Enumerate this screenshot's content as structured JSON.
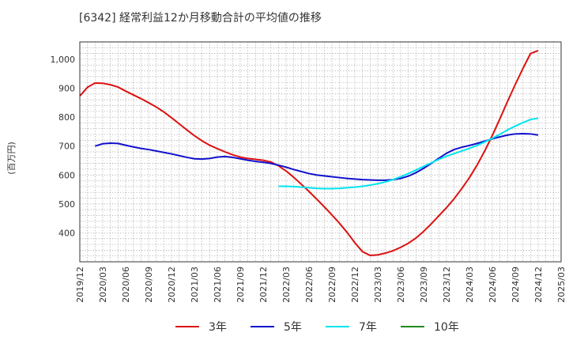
{
  "chart_data": {
    "type": "line",
    "title": "[6342]  経常利益12か月移動合計の平均値の推移",
    "ylabel": "(百万円)",
    "xlabel": "",
    "ylim": [
      300,
      1060
    ],
    "yticks": [
      400,
      500,
      600,
      700,
      800,
      900,
      1000
    ],
    "ytick_labels": [
      "400",
      "500",
      "600",
      "700",
      "800",
      "900",
      "1,000"
    ],
    "xticks": [
      "2019/12",
      "2020/03",
      "2020/06",
      "2020/09",
      "2020/12",
      "2021/03",
      "2021/06",
      "2021/09",
      "2021/12",
      "2022/03",
      "2022/06",
      "2022/09",
      "2022/12",
      "2023/03",
      "2023/06",
      "2023/09",
      "2023/12",
      "2024/03",
      "2024/06",
      "2024/09",
      "2024/12",
      "2025/03"
    ],
    "grid": true,
    "legend_position": "bottom",
    "series": [
      {
        "name": "3年",
        "color": "#dd1111",
        "points": [
          [
            "2019/12",
            873
          ],
          [
            "2020/01",
            903
          ],
          [
            "2020/02",
            918
          ],
          [
            "2020/03",
            917
          ],
          [
            "2020/04",
            912
          ],
          [
            "2020/05",
            904
          ],
          [
            "2020/06",
            890
          ],
          [
            "2020/07",
            877
          ],
          [
            "2020/08",
            864
          ],
          [
            "2020/09",
            850
          ],
          [
            "2020/10",
            835
          ],
          [
            "2020/11",
            818
          ],
          [
            "2020/12",
            798
          ],
          [
            "2021/01",
            777
          ],
          [
            "2021/02",
            756
          ],
          [
            "2021/03",
            736
          ],
          [
            "2021/04",
            718
          ],
          [
            "2021/05",
            703
          ],
          [
            "2021/06",
            691
          ],
          [
            "2021/07",
            680
          ],
          [
            "2021/08",
            670
          ],
          [
            "2021/09",
            662
          ],
          [
            "2021/10",
            657
          ],
          [
            "2021/11",
            654
          ],
          [
            "2021/12",
            651
          ],
          [
            "2022/01",
            645
          ],
          [
            "2022/02",
            632
          ],
          [
            "2022/03",
            614
          ],
          [
            "2022/04",
            592
          ],
          [
            "2022/05",
            568
          ],
          [
            "2022/06",
            543
          ],
          [
            "2022/07",
            517
          ],
          [
            "2022/08",
            490
          ],
          [
            "2022/09",
            462
          ],
          [
            "2022/10",
            433
          ],
          [
            "2022/11",
            401
          ],
          [
            "2022/12",
            366
          ],
          [
            "2023/01",
            335
          ],
          [
            "2023/02",
            322
          ],
          [
            "2023/03",
            324
          ],
          [
            "2023/04",
            330
          ],
          [
            "2023/05",
            338
          ],
          [
            "2023/06",
            350
          ],
          [
            "2023/07",
            364
          ],
          [
            "2023/08",
            382
          ],
          [
            "2023/09",
            405
          ],
          [
            "2023/10",
            431
          ],
          [
            "2023/11",
            459
          ],
          [
            "2023/12",
            487
          ],
          [
            "2024/01",
            518
          ],
          [
            "2024/02",
            553
          ],
          [
            "2024/03",
            591
          ],
          [
            "2024/04",
            634
          ],
          [
            "2024/05",
            683
          ],
          [
            "2024/06",
            737
          ],
          [
            "2024/07",
            795
          ],
          [
            "2024/08",
            855
          ],
          [
            "2024/09",
            913
          ],
          [
            "2024/10",
            968
          ],
          [
            "2024/11",
            1020
          ],
          [
            "2024/12",
            1030
          ]
        ]
      },
      {
        "name": "5年",
        "color": "#1111cc",
        "points": [
          [
            "2020/02",
            700
          ],
          [
            "2020/03",
            708
          ],
          [
            "2020/04",
            710
          ],
          [
            "2020/05",
            709
          ],
          [
            "2020/06",
            703
          ],
          [
            "2020/07",
            697
          ],
          [
            "2020/08",
            692
          ],
          [
            "2020/09",
            688
          ],
          [
            "2020/10",
            683
          ],
          [
            "2020/11",
            678
          ],
          [
            "2020/12",
            673
          ],
          [
            "2021/01",
            667
          ],
          [
            "2021/02",
            661
          ],
          [
            "2021/03",
            656
          ],
          [
            "2021/04",
            655
          ],
          [
            "2021/05",
            657
          ],
          [
            "2021/06",
            662
          ],
          [
            "2021/07",
            664
          ],
          [
            "2021/08",
            661
          ],
          [
            "2021/09",
            656
          ],
          [
            "2021/10",
            651
          ],
          [
            "2021/11",
            647
          ],
          [
            "2021/12",
            644
          ],
          [
            "2022/01",
            640
          ],
          [
            "2022/02",
            634
          ],
          [
            "2022/03",
            627
          ],
          [
            "2022/04",
            619
          ],
          [
            "2022/05",
            612
          ],
          [
            "2022/06",
            605
          ],
          [
            "2022/07",
            600
          ],
          [
            "2022/08",
            597
          ],
          [
            "2022/09",
            594
          ],
          [
            "2022/10",
            591
          ],
          [
            "2022/11",
            588
          ],
          [
            "2022/12",
            586
          ],
          [
            "2023/01",
            584
          ],
          [
            "2023/02",
            583
          ],
          [
            "2023/03",
            582
          ],
          [
            "2023/04",
            582
          ],
          [
            "2023/05",
            584
          ],
          [
            "2023/06",
            588
          ],
          [
            "2023/07",
            596
          ],
          [
            "2023/08",
            608
          ],
          [
            "2023/09",
            623
          ],
          [
            "2023/10",
            640
          ],
          [
            "2023/11",
            658
          ],
          [
            "2023/12",
            675
          ],
          [
            "2024/01",
            688
          ],
          [
            "2024/02",
            696
          ],
          [
            "2024/03",
            702
          ],
          [
            "2024/04",
            709
          ],
          [
            "2024/05",
            717
          ],
          [
            "2024/06",
            725
          ],
          [
            "2024/07",
            732
          ],
          [
            "2024/08",
            738
          ],
          [
            "2024/09",
            742
          ],
          [
            "2024/10",
            743
          ],
          [
            "2024/11",
            742
          ],
          [
            "2024/12",
            738
          ]
        ]
      },
      {
        "name": "7年",
        "color": "#00e5ee",
        "points": [
          [
            "2022/02",
            561
          ],
          [
            "2022/03",
            561
          ],
          [
            "2022/04",
            560
          ],
          [
            "2022/05",
            558
          ],
          [
            "2022/06",
            556
          ],
          [
            "2022/07",
            554
          ],
          [
            "2022/08",
            553
          ],
          [
            "2022/09",
            553
          ],
          [
            "2022/10",
            554
          ],
          [
            "2022/11",
            556
          ],
          [
            "2022/12",
            558
          ],
          [
            "2023/01",
            561
          ],
          [
            "2023/02",
            565
          ],
          [
            "2023/03",
            570
          ],
          [
            "2023/04",
            576
          ],
          [
            "2023/05",
            584
          ],
          [
            "2023/06",
            594
          ],
          [
            "2023/07",
            605
          ],
          [
            "2023/08",
            617
          ],
          [
            "2023/09",
            630
          ],
          [
            "2023/10",
            642
          ],
          [
            "2023/11",
            654
          ],
          [
            "2023/12",
            665
          ],
          [
            "2024/01",
            674
          ],
          [
            "2024/02",
            683
          ],
          [
            "2024/03",
            692
          ],
          [
            "2024/04",
            702
          ],
          [
            "2024/05",
            714
          ],
          [
            "2024/06",
            727
          ],
          [
            "2024/07",
            741
          ],
          [
            "2024/08",
            756
          ],
          [
            "2024/09",
            769
          ],
          [
            "2024/10",
            781
          ],
          [
            "2024/11",
            792
          ],
          [
            "2024/12",
            796
          ]
        ]
      },
      {
        "name": "10年",
        "color": "#228b22",
        "points": []
      }
    ]
  }
}
